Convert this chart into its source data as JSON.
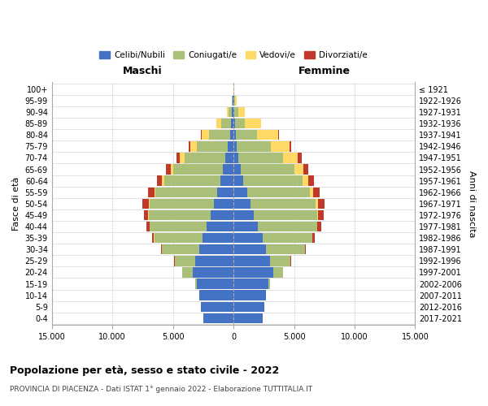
{
  "age_groups": [
    "0-4",
    "5-9",
    "10-14",
    "15-19",
    "20-24",
    "25-29",
    "30-34",
    "35-39",
    "40-44",
    "45-49",
    "50-54",
    "55-59",
    "60-64",
    "65-69",
    "70-74",
    "75-79",
    "80-84",
    "85-89",
    "90-94",
    "95-99",
    "100+"
  ],
  "birth_years": [
    "2017-2021",
    "2012-2016",
    "2007-2011",
    "2002-2006",
    "1997-2001",
    "1992-1996",
    "1987-1991",
    "1982-1986",
    "1977-1981",
    "1972-1976",
    "1967-1971",
    "1962-1966",
    "1957-1961",
    "1952-1956",
    "1947-1951",
    "1942-1946",
    "1937-1941",
    "1932-1936",
    "1927-1931",
    "1922-1926",
    "≤ 1921"
  ],
  "males": {
    "celibi": [
      2500,
      2700,
      2850,
      3000,
      3400,
      3150,
      2800,
      2550,
      2200,
      1900,
      1650,
      1350,
      1050,
      850,
      650,
      450,
      300,
      200,
      120,
      60,
      15
    ],
    "coniugati": [
      3,
      4,
      8,
      150,
      850,
      1700,
      3100,
      4000,
      4700,
      5100,
      5300,
      5100,
      4700,
      4100,
      3400,
      2600,
      1700,
      800,
      300,
      70,
      8
    ],
    "vedovi": [
      0,
      0,
      0,
      1,
      2,
      3,
      5,
      10,
      15,
      30,
      50,
      80,
      150,
      250,
      400,
      550,
      650,
      400,
      130,
      25,
      4
    ],
    "divorziati": [
      0,
      0,
      1,
      3,
      10,
      30,
      80,
      150,
      250,
      400,
      500,
      500,
      450,
      350,
      240,
      110,
      55,
      25,
      12,
      4,
      1
    ]
  },
  "females": {
    "nubili": [
      2400,
      2550,
      2700,
      2850,
      3300,
      3000,
      2700,
      2400,
      2000,
      1700,
      1400,
      1100,
      800,
      600,
      420,
      280,
      160,
      100,
      60,
      30,
      10
    ],
    "coniugate": [
      3,
      4,
      8,
      150,
      800,
      1700,
      3200,
      4100,
      4900,
      5200,
      5400,
      5200,
      4900,
      4400,
      3700,
      2800,
      1800,
      850,
      320,
      80,
      10
    ],
    "vedove": [
      0,
      0,
      0,
      1,
      3,
      5,
      10,
      20,
      40,
      80,
      150,
      250,
      450,
      800,
      1200,
      1550,
      1750,
      1300,
      550,
      120,
      25
    ],
    "divorziate": [
      0,
      0,
      1,
      3,
      10,
      35,
      90,
      160,
      280,
      450,
      560,
      560,
      500,
      400,
      280,
      140,
      70,
      35,
      15,
      4,
      1
    ]
  },
  "colors": {
    "celibi": "#4472C4",
    "coniugati": "#AABF77",
    "vedovi": "#FFD966",
    "divorziati": "#C0392B"
  },
  "xlim": 15000,
  "title": "Popolazione per età, sesso e stato civile - 2022",
  "subtitle": "PROVINCIA DI PIACENZA - Dati ISTAT 1° gennaio 2022 - Elaborazione TUTTITALIA.IT",
  "xlabel_left": "Maschi",
  "xlabel_right": "Femmine",
  "ylabel_left": "Fasce di età",
  "ylabel_right": "Anni di nascita",
  "legend_labels": [
    "Celibi/Nubili",
    "Coniugati/e",
    "Vedovi/e",
    "Divorziati/e"
  ],
  "xticks": [
    -15000,
    -10000,
    -5000,
    0,
    5000,
    10000,
    15000
  ],
  "xtick_labels": [
    "15.000",
    "10.000",
    "5.000",
    "0",
    "5.000",
    "10.000",
    "15.000"
  ]
}
